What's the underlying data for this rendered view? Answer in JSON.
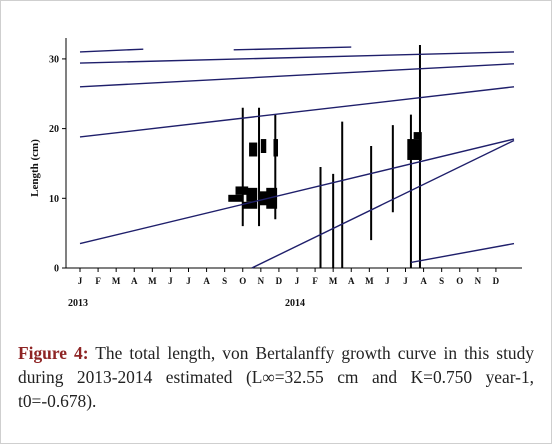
{
  "chart_data": {
    "type": "line",
    "title": "",
    "xlabel": "",
    "ylabel": "Length (cm)",
    "ylim": [
      0,
      33
    ],
    "yticks": [
      0,
      10,
      20,
      30
    ],
    "x_unit": "months since Jan 2013",
    "xlim": [
      0,
      24
    ],
    "month_labels": [
      "J",
      "F",
      "M",
      "A",
      "M",
      "J",
      "J",
      "A",
      "S",
      "O",
      "N",
      "D",
      "J",
      "F",
      "M",
      "A",
      "M",
      "J",
      "J",
      "A",
      "S",
      "O",
      "N",
      "D"
    ],
    "year_labels": [
      {
        "label": "2013",
        "month": 0
      },
      {
        "label": "2014",
        "month": 12
      }
    ],
    "grid": false,
    "legend": "none",
    "line_color": "#1f1f6b",
    "growth_curves": [
      {
        "x": [
          0,
          3.5
        ],
        "y": [
          31,
          31.4
        ]
      },
      {
        "x": [
          0,
          24
        ],
        "y": [
          29.4,
          31
        ]
      },
      {
        "x": [
          0,
          24
        ],
        "y": [
          26,
          29.3
        ]
      },
      {
        "x": [
          0,
          24
        ],
        "y": [
          18.8,
          26
        ]
      },
      {
        "x": [
          0,
          24
        ],
        "y": [
          3.5,
          18.5
        ]
      },
      {
        "x": [
          8.5,
          15
        ],
        "y": [
          31.3,
          31.7
        ]
      },
      {
        "x": [
          9.5,
          24
        ],
        "y": [
          0,
          18.3
        ]
      },
      {
        "x": [
          18.3,
          24
        ],
        "y": [
          0.8,
          3.5
        ]
      }
    ],
    "frequency_spikes": [
      {
        "x": 9.0,
        "y": [
          6,
          23
        ]
      },
      {
        "x": 9.9,
        "y": [
          6,
          23
        ]
      },
      {
        "x": 10.8,
        "y": [
          7,
          22
        ]
      },
      {
        "x": 13.3,
        "y": [
          0,
          14.5
        ]
      },
      {
        "x": 14.0,
        "y": [
          0,
          13.5
        ]
      },
      {
        "x": 14.5,
        "y": [
          0,
          21
        ]
      },
      {
        "x": 16.1,
        "y": [
          4,
          17.5
        ]
      },
      {
        "x": 17.3,
        "y": [
          8,
          20.5
        ]
      },
      {
        "x": 18.3,
        "y": [
          0,
          22
        ]
      },
      {
        "x": 18.8,
        "y": [
          0,
          32
        ]
      }
    ],
    "frequency_blocks": [
      {
        "x": [
          8.2,
          9.0
        ],
        "y": [
          9.5,
          10.5
        ]
      },
      {
        "x": [
          8.6,
          9.3
        ],
        "y": [
          10.5,
          11.7
        ]
      },
      {
        "x": [
          9.0,
          9.8
        ],
        "y": [
          8.5,
          9.5
        ]
      },
      {
        "x": [
          9.2,
          9.8
        ],
        "y": [
          9.5,
          11.5
        ]
      },
      {
        "x": [
          9.35,
          9.8
        ],
        "y": [
          16,
          18
        ]
      },
      {
        "x": [
          9.9,
          10.4
        ],
        "y": [
          9,
          11
        ]
      },
      {
        "x": [
          10.0,
          10.3
        ],
        "y": [
          16.5,
          18.5
        ]
      },
      {
        "x": [
          10.3,
          10.9
        ],
        "y": [
          8.5,
          11.5
        ]
      },
      {
        "x": [
          10.7,
          10.95
        ],
        "y": [
          16,
          18.5
        ]
      },
      {
        "x": [
          18.1,
          18.9
        ],
        "y": [
          15.5,
          18.5
        ]
      },
      {
        "x": [
          18.45,
          18.9
        ],
        "y": [
          18.5,
          19.5
        ]
      }
    ]
  },
  "caption": {
    "label": "Figure 4:",
    "text": "The total length, von Bertalanffy growth curve in this study during 2013-2014 estimated (L∞=32.55 cm and K=0.750 year-1, t0=-0.678)."
  }
}
